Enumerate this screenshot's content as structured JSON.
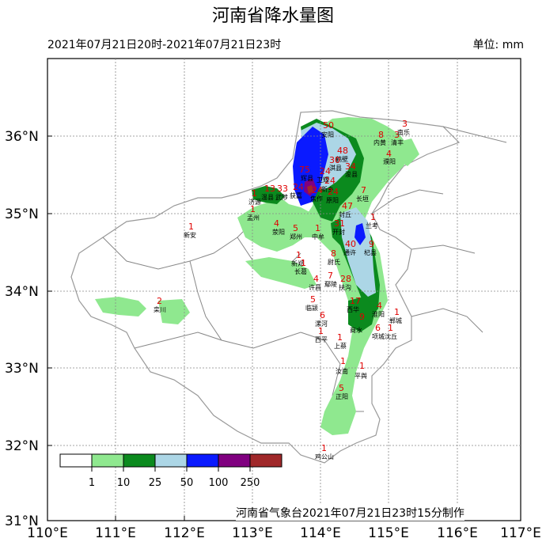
{
  "title": "河南省降水量图",
  "period": "2021年07月21日20时-2021年07月21日23时",
  "unit": "单位: mm",
  "credit": "河南省气象台2021年07月21日23时15分制作",
  "lat_labels": [
    "36°N",
    "35°N",
    "34°N",
    "33°N",
    "32°N",
    "31°N"
  ],
  "lon_labels": [
    "110°E",
    "111°E",
    "112°E",
    "113°E",
    "114°E",
    "115°E",
    "116°E",
    "117°E"
  ],
  "legend": {
    "ticks": [
      "1",
      "10",
      "25",
      "50",
      "100",
      "250"
    ],
    "colors": [
      "#ffffff",
      "#8fe88f",
      "#0b8a1e",
      "#acd6e6",
      "#0a1aff",
      "#800080",
      "#a0282a"
    ]
  },
  "cities": [
    {
      "name": "安阳",
      "value": "50"
    },
    {
      "name": "濮阳",
      "value": "4"
    },
    {
      "name": "内黄",
      "value": "8"
    },
    {
      "name": "清丰",
      "value": "3"
    },
    {
      "name": "南乐",
      "value": "3"
    },
    {
      "name": "鹤壁",
      "value": "48"
    },
    {
      "name": "淇县",
      "value": "30"
    },
    {
      "name": "浚县",
      "value": "34"
    },
    {
      "name": "辉县",
      "value": "75"
    },
    {
      "name": "新乡",
      "value": "24"
    },
    {
      "name": "卫辉",
      "value": "24"
    },
    {
      "name": "获嘉",
      "value": "24"
    },
    {
      "name": "原阳",
      "value": "24"
    },
    {
      "name": "长垣",
      "value": "7"
    },
    {
      "name": "焦作",
      "value": "24"
    },
    {
      "name": "温县",
      "value": "13"
    },
    {
      "name": "武陟",
      "value": "33"
    },
    {
      "name": "济源",
      "value": "1"
    },
    {
      "name": "孟州",
      "value": "1"
    },
    {
      "name": "荥阳",
      "value": "4"
    },
    {
      "name": "郑州",
      "value": "5"
    },
    {
      "name": "中牟",
      "value": "1"
    },
    {
      "name": "开封",
      "value": "31"
    },
    {
      "name": "封丘",
      "value": "47"
    },
    {
      "name": "兰考",
      "value": "1"
    },
    {
      "name": "通许",
      "value": "40"
    },
    {
      "name": "杞县",
      "value": "9"
    },
    {
      "name": "尉氏",
      "value": "8"
    },
    {
      "name": "新郑",
      "value": "1"
    },
    {
      "name": "长葛",
      "value": "1"
    },
    {
      "name": "许昌",
      "value": "4"
    },
    {
      "name": "鄢陵",
      "value": "7"
    },
    {
      "name": "扶沟",
      "value": "28"
    },
    {
      "name": "新安",
      "value": "1"
    },
    {
      "name": "栾川",
      "value": "2"
    },
    {
      "name": "临颍",
      "value": "5"
    },
    {
      "name": "漯河",
      "value": "6"
    },
    {
      "name": "西华",
      "value": "17"
    },
    {
      "name": "淮阳",
      "value": "4"
    },
    {
      "name": "郸城",
      "value": "1"
    },
    {
      "name": "商水",
      "value": "9"
    },
    {
      "name": "项城",
      "value": "6"
    },
    {
      "name": "沈丘",
      "value": "1"
    },
    {
      "name": "西平",
      "value": "1"
    },
    {
      "name": "上蔡",
      "value": "1"
    },
    {
      "name": "汝南",
      "value": "1"
    },
    {
      "name": "平舆",
      "value": "1"
    },
    {
      "name": "正阳",
      "value": "5"
    },
    {
      "name": "鸡公山",
      "value": "1"
    }
  ]
}
